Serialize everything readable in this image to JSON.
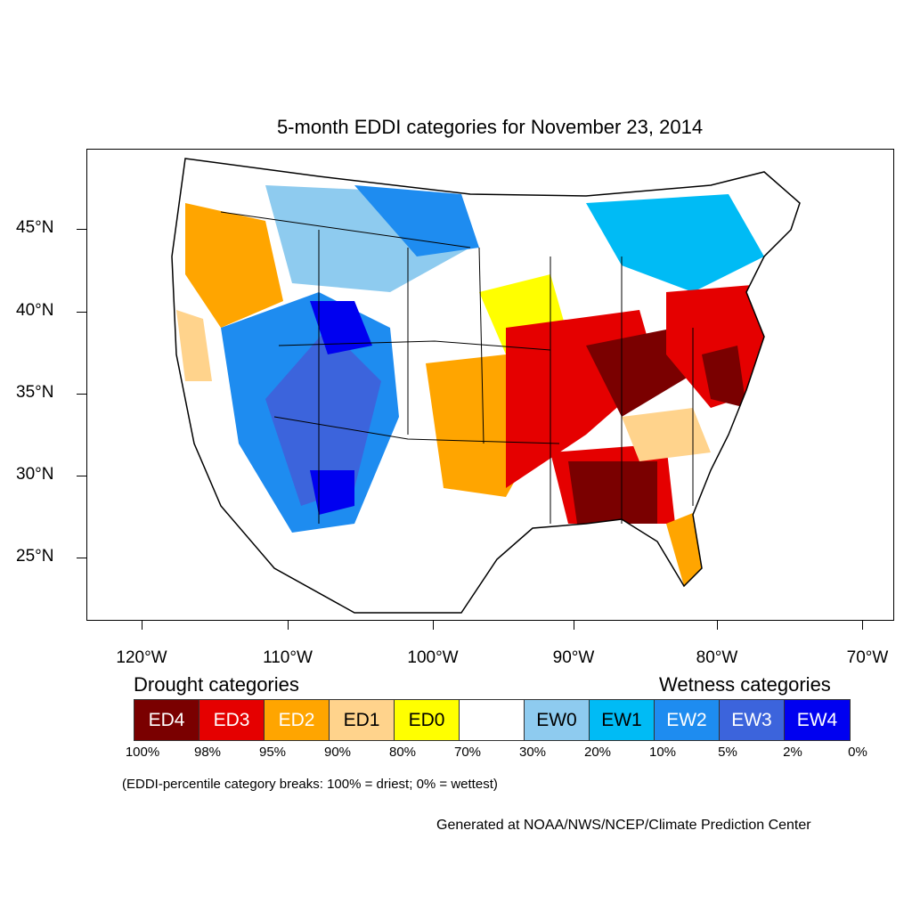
{
  "title": "5-month EDDI categories for November 23, 2014",
  "y_ticks": [
    "45°N",
    "40°N",
    "35°N",
    "30°N",
    "25°N"
  ],
  "x_ticks": [
    "120°W",
    "110°W",
    "100°W",
    "90°W",
    "80°W",
    "70°W"
  ],
  "legend": {
    "drought_heading": "Drought categories",
    "wetness_heading": "Wetness categories",
    "categories": [
      {
        "label": "ED4",
        "color": "#7a0000",
        "text_color": "#ffffff"
      },
      {
        "label": "ED3",
        "color": "#e50000",
        "text_color": "#ffffff"
      },
      {
        "label": "ED2",
        "color": "#ffa500",
        "text_color": "#ffffff"
      },
      {
        "label": "ED1",
        "color": "#ffd38c",
        "text_color": "#000000"
      },
      {
        "label": "ED0",
        "color": "#ffff00",
        "text_color": "#000000"
      },
      {
        "label": "",
        "color": "#ffffff",
        "text_color": "#000000"
      },
      {
        "label": "EW0",
        "color": "#8ecbef",
        "text_color": "#000000"
      },
      {
        "label": "EW1",
        "color": "#00bbf5",
        "text_color": "#000000"
      },
      {
        "label": "EW2",
        "color": "#1e8cf0",
        "text_color": "#ffffff"
      },
      {
        "label": "EW3",
        "color": "#3c64dc",
        "text_color": "#ffffff"
      },
      {
        "label": "EW4",
        "color": "#0000f0",
        "text_color": "#ffffff"
      }
    ],
    "percentiles": [
      "100%",
      "98%",
      "95%",
      "90%",
      "80%",
      "70%",
      "30%",
      "20%",
      "10%",
      "5%",
      "2%",
      "0%"
    ]
  },
  "note": "(EDDI-percentile category breaks: 100% = driest; 0% = wettest)",
  "credit": "Generated at NOAA/NWS/NCEP/Climate Prediction Center"
}
